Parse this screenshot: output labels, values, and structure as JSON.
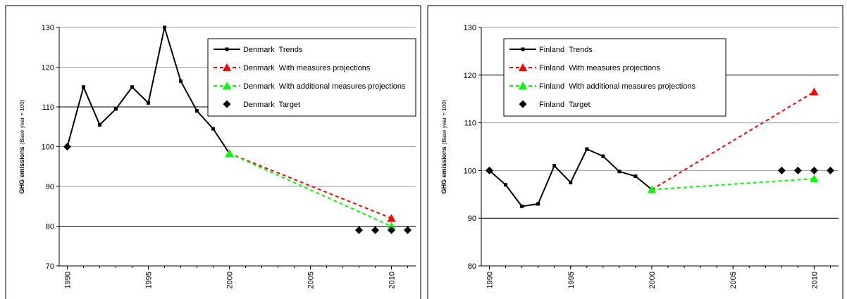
{
  "chart_data": [
    {
      "type": "line",
      "ylabel": "GHG emissions",
      "ylabel_note": "(Base year = 100)",
      "xlim": [
        1989.5,
        2011.5
      ],
      "xticks": [
        1990,
        1995,
        2000,
        2005,
        2010
      ],
      "ylim": [
        70,
        130
      ],
      "yticks": [
        70,
        80,
        90,
        100,
        110,
        120,
        130
      ],
      "grid": true,
      "legend": "upper right",
      "series": [
        {
          "name": "Denmark  Trends",
          "color": "#000000",
          "marker": "square",
          "dash": false,
          "x": [
            1990,
            1991,
            1992,
            1993,
            1994,
            1995,
            1996,
            1997,
            1998,
            1999,
            2000
          ],
          "values": [
            100,
            115,
            105.5,
            109.5,
            115,
            111,
            130,
            116.5,
            109,
            104.5,
            98.3
          ]
        },
        {
          "name": "Denmark  With measures projections",
          "color": "#ff0000",
          "marker": "triangle",
          "dash": true,
          "x": [
            2000,
            2010
          ],
          "values": [
            98.3,
            82
          ]
        },
        {
          "name": "Denmark  With additional measures projections",
          "color": "#00ff00",
          "marker": "triangle",
          "dash": true,
          "x": [
            2000,
            2010
          ],
          "values": [
            98.3,
            80
          ]
        },
        {
          "name": "Denmark  Target",
          "color": "#000000",
          "marker": "diamond",
          "line": false,
          "x": [
            1990,
            2008,
            2009,
            2010,
            2011
          ],
          "values": [
            100,
            79,
            79,
            79,
            79
          ]
        }
      ]
    },
    {
      "type": "line",
      "ylabel": "GHG emissions",
      "ylabel_note": "(Base year = 100)",
      "xlim": [
        1989.5,
        2011.5
      ],
      "xticks": [
        1990,
        1995,
        2000,
        2005,
        2010
      ],
      "ylim": [
        80,
        130
      ],
      "yticks": [
        80,
        90,
        100,
        110,
        120,
        130
      ],
      "grid": true,
      "legend": "upper left",
      "series": [
        {
          "name": "Finland  Trends",
          "color": "#000000",
          "marker": "square",
          "dash": false,
          "x": [
            1990,
            1991,
            1992,
            1993,
            1994,
            1995,
            1996,
            1997,
            1998,
            1999,
            2000
          ],
          "values": [
            100,
            97,
            92.5,
            93,
            101,
            97.5,
            104.5,
            103,
            99.8,
            98.8,
            96
          ]
        },
        {
          "name": "Finland  With measures projections",
          "color": "#ff0000",
          "marker": "triangle",
          "dash": true,
          "x": [
            2000,
            2010
          ],
          "values": [
            96,
            116.5
          ]
        },
        {
          "name": "Finland  With additional measures projections",
          "color": "#00ff00",
          "marker": "triangle",
          "dash": true,
          "x": [
            2000,
            2010
          ],
          "values": [
            96,
            98.3
          ]
        },
        {
          "name": "Finland  Target",
          "color": "#000000",
          "marker": "diamond",
          "line": false,
          "x": [
            1990,
            2008,
            2009,
            2010,
            2011
          ],
          "values": [
            100,
            100,
            100,
            100,
            100
          ]
        }
      ]
    }
  ]
}
